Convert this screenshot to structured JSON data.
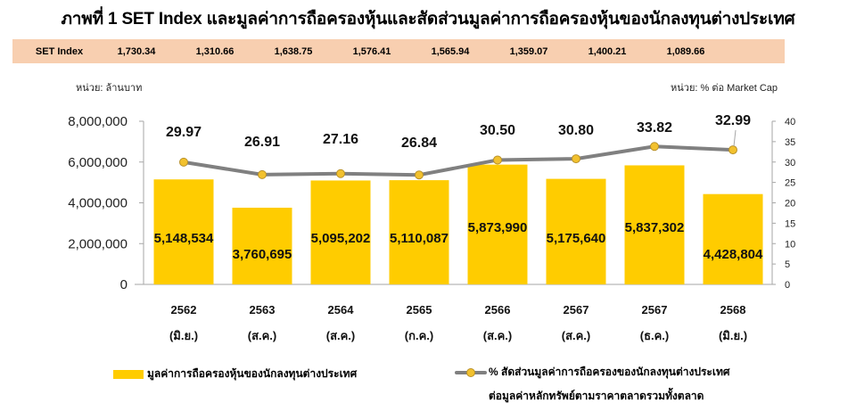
{
  "title": "ภาพที่ 1 SET Index และมูลค่าการถือครองหุ้นและสัดส่วนมูลค่าการถือครองหุ้นของนักลงทุนต่างประเทศ",
  "set_index": {
    "label": "SET Index",
    "values": [
      "1,730.34",
      "1,310.66",
      "1,638.75",
      "1,576.41",
      "1,565.94",
      "1,359.07",
      "1,400.21",
      "1,089.66"
    ]
  },
  "units": {
    "left": "หน่วย: ล้านบาท",
    "right": "หน่วย: % ต่อ Market Cap"
  },
  "colors": {
    "bar": "#ffcc00",
    "line": "#808080",
    "marker": "#f2c12e",
    "set_row_bg": "#f8cfb0"
  },
  "legend": {
    "bar_label": "มูลค่าการถือครองหุ้นของนักลงทุนต่างประเทศ",
    "line_label_1": "% สัดส่วนมูลค่าการถือครองของนักลงทุนต่างประเทศ",
    "line_label_2": "ต่อมูลค่าหลักทรัพย์ตามราคาตลาดรวมทั้งตลาด"
  },
  "chart_data": {
    "type": "bar+line",
    "title": "ภาพที่ 1 SET Index และมูลค่าการถือครองหุ้นและสัดส่วนมูลค่าการถือครองหุ้นของนักลงทุนต่างประเทศ",
    "categories": [
      {
        "year": "2562",
        "month": "(มิ.ย.)"
      },
      {
        "year": "2563",
        "month": "(ส.ค.)"
      },
      {
        "year": "2564",
        "month": "(ส.ค.)"
      },
      {
        "year": "2565",
        "month": "(ก.ค.)"
      },
      {
        "year": "2566",
        "month": "(ส.ค.)"
      },
      {
        "year": "2567",
        "month": "(ส.ค.)"
      },
      {
        "year": "2567",
        "month": "(ธ.ค.)"
      },
      {
        "year": "2568",
        "month": "(มิ.ย.)"
      }
    ],
    "series": [
      {
        "name": "มูลค่าการถือครองหุ้นของนักลงทุนต่างประเทศ",
        "type": "bar",
        "axis": "left",
        "values": [
          5148534,
          3760695,
          5095202,
          5110087,
          5873990,
          5175640,
          5837302,
          4428804
        ],
        "labels": [
          "5,148,534",
          "3,760,695",
          "5,095,202",
          "5,110,087",
          "5,873,990",
          "5,175,640",
          "5,837,302",
          "4,428,804"
        ]
      },
      {
        "name": "% สัดส่วนมูลค่าการถือครองของนักลงทุนต่างประเทศต่อมูลค่าหลักทรัพย์ตามราคาตลาดรวมทั้งตลาด",
        "type": "line",
        "axis": "right",
        "values": [
          29.97,
          26.91,
          27.16,
          26.84,
          30.5,
          30.8,
          33.82,
          32.99
        ],
        "labels": [
          "29.97",
          "26.91",
          "27.16",
          "26.84",
          "30.50",
          "30.80",
          "33.82",
          "32.99"
        ]
      }
    ],
    "y_left": {
      "label": "หน่วย: ล้านบาท",
      "range": [
        0,
        8000000
      ],
      "ticks": [
        0,
        2000000,
        4000000,
        6000000,
        8000000
      ],
      "tick_labels": [
        "0",
        "2,000,000",
        "4,000,000",
        "6,000,000",
        "8,000,000"
      ]
    },
    "y_right": {
      "label": "หน่วย: % ต่อ Market Cap",
      "range": [
        0,
        40
      ],
      "ticks": [
        0,
        5,
        10,
        15,
        20,
        25,
        30,
        35,
        40
      ],
      "tick_labels": [
        "0",
        "5",
        "10",
        "15",
        "20",
        "25",
        "30",
        "35",
        "40"
      ]
    },
    "grid": false,
    "legend_position": "bottom"
  }
}
